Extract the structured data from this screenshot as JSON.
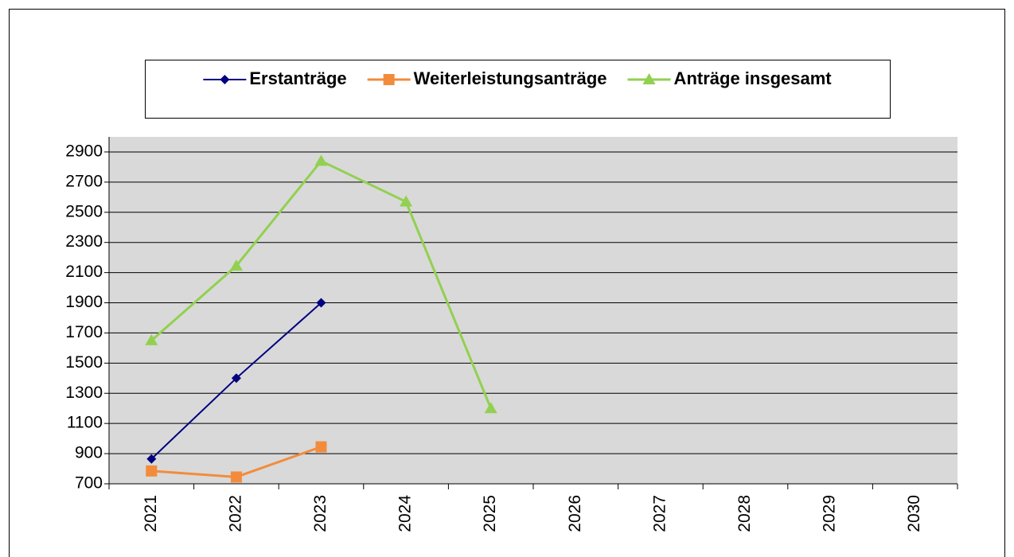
{
  "chart_data": {
    "type": "line",
    "categories": [
      "2021",
      "2022",
      "2023",
      "2024",
      "2025",
      "2026",
      "2027",
      "2028",
      "2029",
      "2030"
    ],
    "series": [
      {
        "name": "Erstanträge",
        "color": "#000080",
        "marker": "diamond",
        "values": [
          865,
          1400,
          1900,
          null,
          null,
          null,
          null,
          null,
          null,
          null
        ]
      },
      {
        "name": "Weiterleistungsanträge",
        "color": "#f28c3c",
        "marker": "square",
        "values": [
          785,
          745,
          945,
          null,
          null,
          null,
          null,
          null,
          null,
          null
        ]
      },
      {
        "name": "Anträge insgesamt",
        "color": "#92d050",
        "marker": "triangle",
        "values": [
          1650,
          2145,
          2840,
          2570,
          1200,
          null,
          null,
          null,
          null,
          null
        ]
      }
    ],
    "ylim": [
      700,
      3000
    ],
    "yticks": [
      700,
      900,
      1100,
      1300,
      1500,
      1700,
      1900,
      2100,
      2300,
      2500,
      2700,
      2900
    ],
    "grid": true,
    "legend": "top"
  }
}
